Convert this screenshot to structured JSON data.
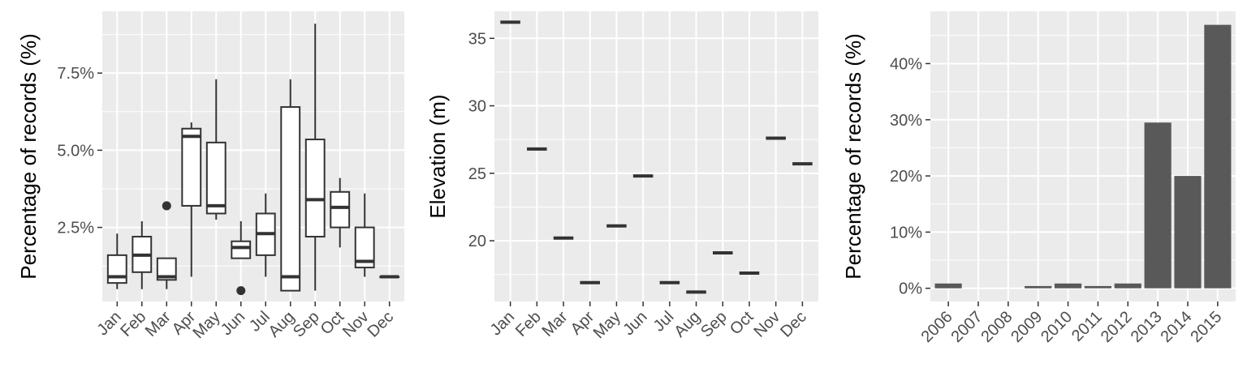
{
  "chart_data": [
    {
      "type": "box",
      "ylabel": "Percentage of records (%)",
      "xlabel": "",
      "ylim": [
        0.1,
        9.5
      ],
      "yticks": [
        2.5,
        5.0,
        7.5
      ],
      "yticklabels": [
        "2.5%",
        "5.0%",
        "7.5%"
      ],
      "grid": true,
      "categories": [
        "Jan",
        "Feb",
        "Mar",
        "Apr",
        "May",
        "Jun",
        "Jul",
        "Aug",
        "Sep",
        "Oct",
        "Nov",
        "Dec"
      ],
      "boxes": [
        {
          "min": 0.5,
          "q1": 0.7,
          "median": 0.9,
          "q3": 1.6,
          "max": 2.3,
          "outliers": []
        },
        {
          "min": 0.5,
          "q1": 1.05,
          "median": 1.6,
          "q3": 2.2,
          "max": 2.7,
          "outliers": []
        },
        {
          "min": 0.5,
          "q1": 0.8,
          "median": 0.9,
          "q3": 1.5,
          "max": 1.5,
          "outliers": [
            3.2
          ]
        },
        {
          "min": 0.9,
          "q1": 3.2,
          "median": 5.45,
          "q3": 5.7,
          "max": 5.9,
          "outliers": []
        },
        {
          "min": 2.75,
          "q1": 2.95,
          "median": 3.2,
          "q3": 5.25,
          "max": 7.3,
          "outliers": []
        },
        {
          "min": 1.5,
          "q1": 1.5,
          "median": 1.85,
          "q3": 2.05,
          "max": 2.7,
          "outliers": [
            0.45
          ]
        },
        {
          "min": 0.9,
          "q1": 1.6,
          "median": 2.3,
          "q3": 2.95,
          "max": 3.6,
          "outliers": []
        },
        {
          "min": 0.45,
          "q1": 0.45,
          "median": 0.9,
          "q3": 6.4,
          "max": 7.3,
          "outliers": []
        },
        {
          "min": 0.45,
          "q1": 2.2,
          "median": 3.4,
          "q3": 5.35,
          "max": 9.1,
          "outliers": []
        },
        {
          "min": 1.85,
          "q1": 2.5,
          "median": 3.15,
          "q3": 3.65,
          "max": 4.1,
          "outliers": []
        },
        {
          "min": 0.9,
          "q1": 1.2,
          "median": 1.4,
          "q3": 2.5,
          "max": 3.6,
          "outliers": []
        },
        {
          "min": 0.9,
          "q1": 0.9,
          "median": 0.9,
          "q3": 0.9,
          "max": 0.9,
          "outliers": []
        }
      ]
    },
    {
      "type": "box",
      "ylabel": "Elevation (m)",
      "xlabel": "",
      "ylim": [
        15.5,
        37.0
      ],
      "yticks": [
        20,
        25,
        30,
        35
      ],
      "yticklabels": [
        "20",
        "25",
        "30",
        "35"
      ],
      "grid": true,
      "categories": [
        "Jan",
        "Feb",
        "Mar",
        "Apr",
        "May",
        "Jun",
        "Jul",
        "Aug",
        "Sep",
        "Oct",
        "Nov",
        "Dec"
      ],
      "values": [
        36.2,
        26.8,
        20.2,
        16.9,
        21.1,
        24.8,
        16.9,
        16.2,
        19.1,
        17.6,
        27.6,
        25.7
      ]
    },
    {
      "type": "bar",
      "ylabel": "Percentage of records (%)",
      "xlabel": "",
      "ylim": [
        -2.35,
        49.3
      ],
      "yticks": [
        0,
        10,
        20,
        30,
        40
      ],
      "yticklabels": [
        "0%",
        "10%",
        "20%",
        "30%",
        "40%"
      ],
      "grid": true,
      "categories": [
        "2006",
        "2007",
        "2008",
        "2009",
        "2010",
        "2011",
        "2012",
        "2013",
        "2014",
        "2015"
      ],
      "values": [
        0.85,
        0,
        0,
        0.4,
        0.85,
        0.4,
        0.85,
        29.5,
        20.0,
        46.9
      ],
      "bar_color": "#595959"
    }
  ]
}
